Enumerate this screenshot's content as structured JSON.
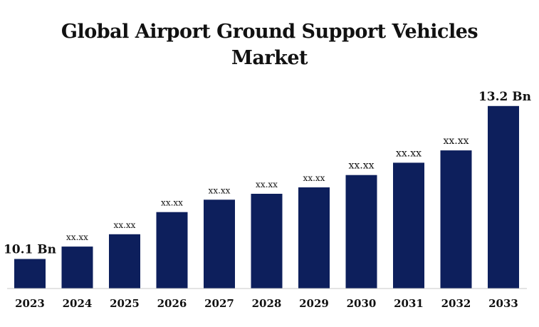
{
  "chart_data": {
    "type": "bar",
    "title_lines": [
      "Global Airport Ground Support Vehicles",
      "Market"
    ],
    "xlabel": "",
    "ylabel": "",
    "categories": [
      "2023",
      "2024",
      "2025",
      "2026",
      "2027",
      "2028",
      "2029",
      "2030",
      "2031",
      "2032",
      "2033"
    ],
    "values": [
      10.1,
      10.35,
      10.6,
      11.05,
      11.3,
      11.42,
      11.55,
      11.8,
      12.05,
      12.3,
      13.2
    ],
    "data_labels": [
      "10.1 Bn",
      "xx.xx",
      "xx.xx",
      "xx.xx",
      "xx.xx",
      "xx.xx",
      "xx.xx",
      "xx.xx",
      "xx.xx",
      "xx.xx",
      "13.2 Bn"
    ],
    "ylim": [
      9.5,
      13.5
    ],
    "grid": false,
    "bar_color": "#0d1f5c"
  }
}
